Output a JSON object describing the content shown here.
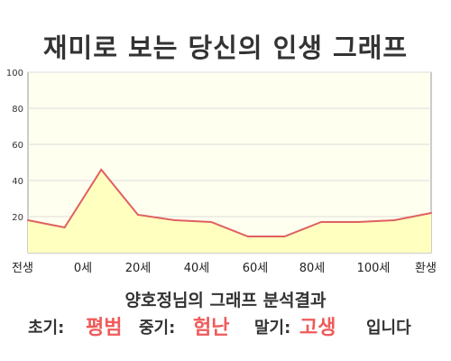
{
  "page": {
    "title": "재미로 보는 당신의 인생 그래프",
    "subtitle": "양호정님의 그래프 분석결과",
    "result": {
      "early_label": "초기:",
      "early_value": "평범",
      "mid_label": "중기:",
      "mid_value": "험난",
      "late_label": "말기:",
      "late_value": "고생",
      "suffix": "입니다"
    },
    "colors": {
      "line": "#e06060",
      "area": "#ffffc0",
      "plot_background": "#fffff0",
      "accent_text": "#f05a5a"
    }
  },
  "chart_data": {
    "type": "area",
    "title": "재미로 보는 당신의 인생 그래프",
    "xlabel": "",
    "ylabel": "",
    "ylim": [
      0,
      100
    ],
    "yticks": [
      20,
      40,
      60,
      80,
      100
    ],
    "x_tick_labels": [
      "전생",
      "0세",
      "20세",
      "40세",
      "60세",
      "80세",
      "100세",
      "환생"
    ],
    "grid": true,
    "points": [
      {
        "x": "전생",
        "y": 18
      },
      {
        "x": "0세",
        "y": 14
      },
      {
        "x": "20세",
        "y": 46
      },
      {
        "x": "30세",
        "y": 21
      },
      {
        "x": "40세",
        "y": 18
      },
      {
        "x": "50세",
        "y": 17
      },
      {
        "x": "60세",
        "y": 9
      },
      {
        "x": "70세",
        "y": 9
      },
      {
        "x": "80세",
        "y": 17
      },
      {
        "x": "90세",
        "y": 17
      },
      {
        "x": "100세",
        "y": 18
      },
      {
        "x": "환생",
        "y": 22
      }
    ]
  }
}
